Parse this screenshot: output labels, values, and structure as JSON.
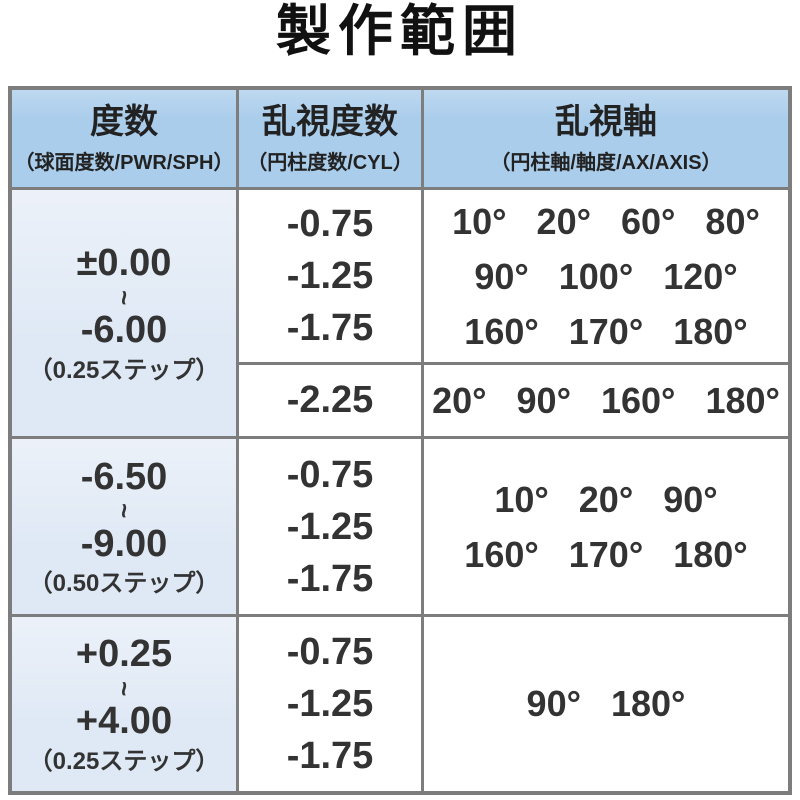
{
  "title": "製作範囲",
  "colors": {
    "header_background": "#aacdeb",
    "power_column_background": "#dfe9f5",
    "border": "#7d7d7d",
    "text": "#333333"
  },
  "table": {
    "headers": [
      {
        "main": "度数",
        "sub": "（球面度数/PWR/SPH）"
      },
      {
        "main": "乱視度数",
        "sub": "（円柱度数/CYL）"
      },
      {
        "main": "乱視軸",
        "sub": "（円柱軸/軸度/AX/AXIS）"
      }
    ],
    "groups": [
      {
        "power": {
          "from": "±0.00",
          "tilde": "~",
          "to": "-6.00",
          "step": "（0.25ステップ）"
        },
        "subrows": [
          {
            "cyl": [
              "-0.75",
              "-1.25",
              "-1.75"
            ],
            "axis": [
              "10° 20° 60° 80°",
              "90° 100° 120°",
              "160° 170° 180°"
            ]
          },
          {
            "cyl": [
              "-2.25"
            ],
            "axis": [
              "20° 90° 160° 180°"
            ]
          }
        ]
      },
      {
        "power": {
          "from": "-6.50",
          "tilde": "~",
          "to": "-9.00",
          "step": "（0.50ステップ）"
        },
        "subrows": [
          {
            "cyl": [
              "-0.75",
              "-1.25",
              "-1.75"
            ],
            "axis": [
              "10° 20° 90°",
              "160° 170° 180°"
            ]
          }
        ]
      },
      {
        "power": {
          "from": "+0.25",
          "tilde": "~",
          "to": "+4.00",
          "step": "（0.25ステップ）"
        },
        "subrows": [
          {
            "cyl": [
              "-0.75",
              "-1.25",
              "-1.75"
            ],
            "axis": [
              "90° 180°"
            ]
          }
        ]
      }
    ]
  }
}
